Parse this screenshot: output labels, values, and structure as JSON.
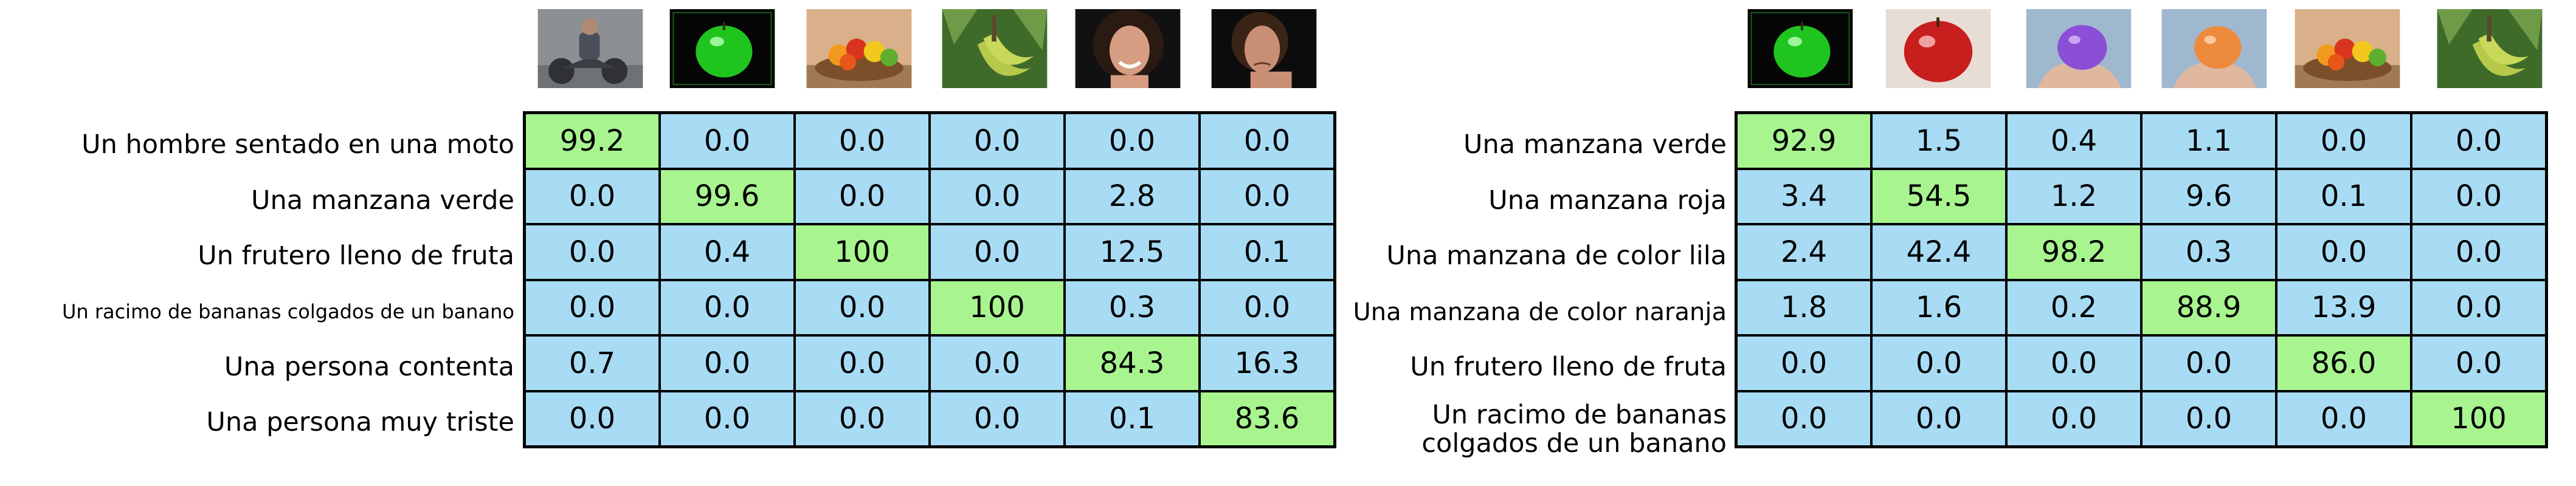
{
  "left": {
    "images": [
      {
        "name": "man-on-motorbike-image",
        "colors": {
          "bg": "#8c8f94",
          "fg": "#2f3135"
        }
      },
      {
        "name": "green-apple-image",
        "colors": {
          "bg": "#050505",
          "fg": "#1fc41f"
        }
      },
      {
        "name": "fruit-bowl-image",
        "colors": {
          "bg": "#d9b089",
          "fg": "#7a4f2a"
        }
      },
      {
        "name": "bananas-image",
        "colors": {
          "bg": "#3f6b2a",
          "fg": "#b7c94a"
        }
      },
      {
        "name": "happy-woman-image",
        "colors": {
          "bg": "#111111",
          "fg": "#d69d82"
        }
      },
      {
        "name": "sad-woman-image",
        "colors": {
          "bg": "#0c0c0c",
          "fg": "#c98f74"
        }
      }
    ],
    "rows": [
      {
        "label": "Un hombre sentado en una moto",
        "values": [
          "99.2",
          "0.0",
          "0.0",
          "0.0",
          "0.0",
          "0.0"
        ],
        "hi": 0
      },
      {
        "label": "Una manzana verde",
        "values": [
          "0.0",
          "99.6",
          "0.0",
          "0.0",
          "2.8",
          "0.0"
        ],
        "hi": 1
      },
      {
        "label": "Un frutero lleno de fruta",
        "values": [
          "0.0",
          "0.4",
          "100",
          "0.0",
          "12.5",
          "0.1"
        ],
        "hi": 2
      },
      {
        "label": "Un racimo de bananas colgados de un banano",
        "values": [
          "0.0",
          "0.0",
          "0.0",
          "100",
          "0.3",
          "0.0"
        ],
        "hi": 3
      },
      {
        "label": "Una persona contenta",
        "values": [
          "0.7",
          "0.0",
          "0.0",
          "0.0",
          "84.3",
          "16.3"
        ],
        "hi": 4
      },
      {
        "label": "Una persona muy triste",
        "values": [
          "0.0",
          "0.0",
          "0.0",
          "0.0",
          "0.1",
          "83.6"
        ],
        "hi": 5
      }
    ]
  },
  "right": {
    "images": [
      {
        "name": "green-apple-image",
        "colors": {
          "bg": "#050505",
          "fg": "#1fc41f"
        }
      },
      {
        "name": "red-apple-image",
        "colors": {
          "bg": "#e8ddd5",
          "fg": "#c81e1e"
        }
      },
      {
        "name": "purple-apple-in-hand-image",
        "colors": {
          "bg": "#9fb8cf",
          "fg": "#8b4fd6"
        }
      },
      {
        "name": "orange-apple-in-hand-image",
        "colors": {
          "bg": "#9fb8cf",
          "fg": "#ee8a3c"
        }
      },
      {
        "name": "fruit-bowl-image",
        "colors": {
          "bg": "#d9b089",
          "fg": "#7a4f2a"
        }
      },
      {
        "name": "bananas-image",
        "colors": {
          "bg": "#3f6b2a",
          "fg": "#b7c94a"
        }
      }
    ],
    "rows": [
      {
        "label": "Una manzana verde",
        "values": [
          "92.9",
          "1.5",
          "0.4",
          "1.1",
          "0.0",
          "0.0"
        ],
        "hi": 0
      },
      {
        "label": "Una manzana roja",
        "values": [
          "3.4",
          "54.5",
          "1.2",
          "9.6",
          "0.1",
          "0.0"
        ],
        "hi": 1
      },
      {
        "label": "Una manzana de color lila",
        "values": [
          "2.4",
          "42.4",
          "98.2",
          "0.3",
          "0.0",
          "0.0"
        ],
        "hi": 2
      },
      {
        "label": "Una manzana de color naranja",
        "values": [
          "1.8",
          "1.6",
          "0.2",
          "88.9",
          "13.9",
          "0.0"
        ],
        "hi": 3
      },
      {
        "label": "Un frutero lleno de fruta",
        "values": [
          "0.0",
          "0.0",
          "0.0",
          "0.0",
          "86.0",
          "0.0"
        ],
        "hi": 4
      },
      {
        "label": "Un racimo de bananas colgados de un banano",
        "values": [
          "0.0",
          "0.0",
          "0.0",
          "0.0",
          "0.0",
          "100"
        ],
        "hi": 5
      }
    ]
  },
  "colors": {
    "cell": "#a8dcf5",
    "highlight": "#a8f590",
    "border": "#000000"
  }
}
